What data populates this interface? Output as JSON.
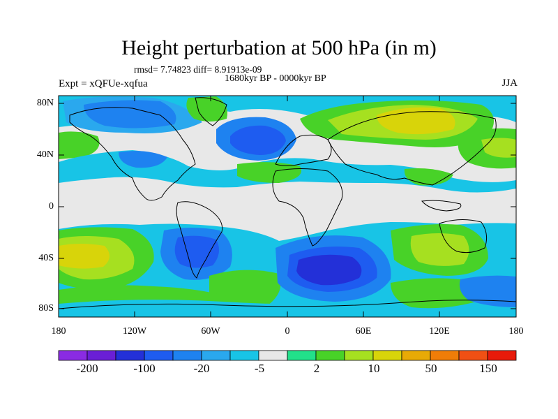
{
  "title": "Height perturbation at 500 hPa (in m)",
  "stats": "rmsd= 7.74823 diff= 8.91913e-09",
  "period": "1680kyr BP - 0000kyr BP",
  "experiment": "Expt = xQFUe-xqfua",
  "season": "JJA",
  "axes": {
    "lat_ticks": [
      "80N",
      "40N",
      "0",
      "40S",
      "80S"
    ],
    "lon_ticks": [
      "180",
      "120W",
      "60W",
      "0",
      "60E",
      "120E",
      "180"
    ]
  },
  "colorbar": {
    "labels": [
      "-200",
      "-100",
      "-20",
      "-5",
      "2",
      "10",
      "50",
      "150"
    ],
    "colors": [
      "#8a2be2",
      "#6a1fd6",
      "#2330d8",
      "#1e5cf0",
      "#1e82f0",
      "#2aa8ee",
      "#18c4e6",
      "#e8e8e8",
      "#22e08a",
      "#48d228",
      "#a6e020",
      "#d8d40a",
      "#e8aa06",
      "#f07d08",
      "#f05014",
      "#e81a0a"
    ]
  },
  "field_colors": {
    "neutral": "#e8e8e8",
    "cyan": "#18c4e6",
    "light_blue": "#2aa8ee",
    "blue": "#1e82f0",
    "deep_blue": "#1e5cf0",
    "darkest_blue": "#2330d8",
    "light_green": "#22e08a",
    "green": "#48d228",
    "yellow_green": "#a6e020",
    "yellow": "#d8d40a",
    "orange": "#e8aa06"
  }
}
